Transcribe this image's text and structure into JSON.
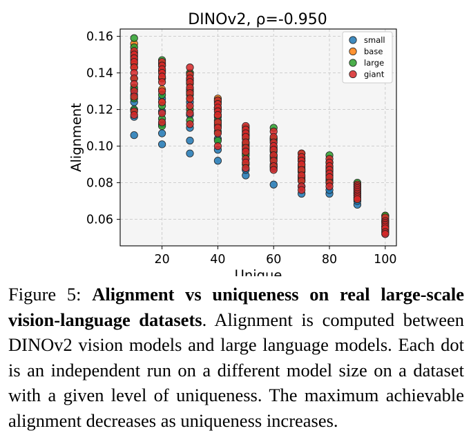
{
  "chart_data": {
    "type": "scatter",
    "title": "DINOv2, ρ=-0.950",
    "xlabel": "Unique",
    "ylabel": "Alignment",
    "xlim": [
      5,
      104
    ],
    "ylim": [
      0.0455,
      0.164
    ],
    "xticks": [
      20,
      40,
      60,
      80,
      100
    ],
    "yticks": [
      0.06,
      0.08,
      0.1,
      0.12,
      0.14,
      0.16
    ],
    "xtick_labels": [
      "20",
      "40",
      "60",
      "80",
      "100"
    ],
    "ytick_labels": [
      "0.06",
      "0.08",
      "0.10",
      "0.12",
      "0.14",
      "0.16"
    ],
    "grid": true,
    "legend_position": "top-right",
    "series": [
      {
        "name": "small",
        "color": "#1f77b4",
        "points": [
          [
            10,
            0.106
          ],
          [
            10,
            0.116
          ],
          [
            10,
            0.12
          ],
          [
            10,
            0.124
          ],
          [
            10,
            0.128
          ],
          [
            10,
            0.131
          ],
          [
            20,
            0.101
          ],
          [
            20,
            0.107
          ],
          [
            20,
            0.112
          ],
          [
            20,
            0.119
          ],
          [
            20,
            0.126
          ],
          [
            20,
            0.137
          ],
          [
            30,
            0.096
          ],
          [
            30,
            0.103
          ],
          [
            30,
            0.11
          ],
          [
            30,
            0.117
          ],
          [
            30,
            0.124
          ],
          [
            30,
            0.131
          ],
          [
            40,
            0.092
          ],
          [
            40,
            0.098
          ],
          [
            40,
            0.104
          ],
          [
            40,
            0.111
          ],
          [
            40,
            0.116
          ],
          [
            40,
            0.121
          ],
          [
            50,
            0.084
          ],
          [
            50,
            0.087
          ],
          [
            50,
            0.093
          ],
          [
            50,
            0.098
          ],
          [
            50,
            0.102
          ],
          [
            50,
            0.106
          ],
          [
            60,
            0.079
          ],
          [
            60,
            0.088
          ],
          [
            60,
            0.094
          ],
          [
            60,
            0.098
          ],
          [
            60,
            0.103
          ],
          [
            70,
            0.074
          ],
          [
            70,
            0.078
          ],
          [
            70,
            0.083
          ],
          [
            70,
            0.086
          ],
          [
            70,
            0.088
          ],
          [
            70,
            0.09
          ],
          [
            80,
            0.074
          ],
          [
            80,
            0.076
          ],
          [
            80,
            0.082
          ],
          [
            80,
            0.086
          ],
          [
            80,
            0.089
          ],
          [
            90,
            0.068
          ],
          [
            90,
            0.07
          ],
          [
            90,
            0.073
          ],
          [
            90,
            0.076
          ],
          [
            100,
            0.052
          ],
          [
            100,
            0.054
          ],
          [
            100,
            0.056
          ],
          [
            100,
            0.059
          ]
        ]
      },
      {
        "name": "base",
        "color": "#ff7f0e",
        "points": [
          [
            10,
            0.143
          ],
          [
            10,
            0.145
          ],
          [
            10,
            0.147
          ],
          [
            10,
            0.149
          ],
          [
            10,
            0.151
          ],
          [
            10,
            0.156
          ],
          [
            20,
            0.124
          ],
          [
            20,
            0.131
          ],
          [
            20,
            0.137
          ],
          [
            20,
            0.141
          ],
          [
            20,
            0.145
          ],
          [
            30,
            0.126
          ],
          [
            30,
            0.13
          ],
          [
            30,
            0.134
          ],
          [
            30,
            0.137
          ],
          [
            30,
            0.14
          ],
          [
            40,
            0.112
          ],
          [
            40,
            0.117
          ],
          [
            40,
            0.121
          ],
          [
            40,
            0.124
          ],
          [
            40,
            0.126
          ],
          [
            50,
            0.096
          ],
          [
            50,
            0.1
          ],
          [
            50,
            0.104
          ],
          [
            50,
            0.108
          ],
          [
            60,
            0.09
          ],
          [
            60,
            0.095
          ],
          [
            60,
            0.099
          ],
          [
            60,
            0.104
          ],
          [
            70,
            0.082
          ],
          [
            70,
            0.086
          ],
          [
            70,
            0.089
          ],
          [
            70,
            0.092
          ],
          [
            80,
            0.08
          ],
          [
            80,
            0.084
          ],
          [
            80,
            0.088
          ],
          [
            80,
            0.091
          ],
          [
            90,
            0.072
          ],
          [
            90,
            0.075
          ],
          [
            90,
            0.077
          ],
          [
            90,
            0.079
          ],
          [
            100,
            0.055
          ],
          [
            100,
            0.058
          ],
          [
            100,
            0.06
          ],
          [
            100,
            0.062
          ]
        ]
      },
      {
        "name": "large",
        "color": "#2ca02c",
        "points": [
          [
            10,
            0.159
          ],
          [
            10,
            0.154
          ],
          [
            10,
            0.137
          ],
          [
            10,
            0.132
          ],
          [
            10,
            0.126
          ],
          [
            10,
            0.12
          ],
          [
            20,
            0.147
          ],
          [
            20,
            0.144
          ],
          [
            20,
            0.128
          ],
          [
            20,
            0.122
          ],
          [
            20,
            0.115
          ],
          [
            20,
            0.111
          ],
          [
            30,
            0.14
          ],
          [
            30,
            0.136
          ],
          [
            30,
            0.128
          ],
          [
            30,
            0.12
          ],
          [
            30,
            0.114
          ],
          [
            40,
            0.125
          ],
          [
            40,
            0.12
          ],
          [
            40,
            0.114
          ],
          [
            40,
            0.108
          ],
          [
            40,
            0.103
          ],
          [
            50,
            0.11
          ],
          [
            50,
            0.106
          ],
          [
            50,
            0.101
          ],
          [
            50,
            0.095
          ],
          [
            50,
            0.09
          ],
          [
            60,
            0.11
          ],
          [
            60,
            0.104
          ],
          [
            60,
            0.097
          ],
          [
            60,
            0.093
          ],
          [
            60,
            0.089
          ],
          [
            70,
            0.096
          ],
          [
            70,
            0.093
          ],
          [
            70,
            0.087
          ],
          [
            70,
            0.081
          ],
          [
            80,
            0.095
          ],
          [
            80,
            0.091
          ],
          [
            80,
            0.087
          ],
          [
            80,
            0.081
          ],
          [
            90,
            0.08
          ],
          [
            90,
            0.078
          ],
          [
            90,
            0.074
          ],
          [
            90,
            0.071
          ],
          [
            100,
            0.062
          ],
          [
            100,
            0.059
          ],
          [
            100,
            0.056
          ],
          [
            100,
            0.053
          ]
        ]
      },
      {
        "name": "giant",
        "color": "#d62728",
        "points": [
          [
            10,
            0.152
          ],
          [
            10,
            0.15
          ],
          [
            10,
            0.148
          ],
          [
            10,
            0.146
          ],
          [
            10,
            0.143
          ],
          [
            10,
            0.14
          ],
          [
            10,
            0.137
          ],
          [
            10,
            0.134
          ],
          [
            10,
            0.13
          ],
          [
            10,
            0.127
          ],
          [
            10,
            0.119
          ],
          [
            10,
            0.117
          ],
          [
            20,
            0.146
          ],
          [
            20,
            0.144
          ],
          [
            20,
            0.142
          ],
          [
            20,
            0.14
          ],
          [
            20,
            0.138
          ],
          [
            20,
            0.135
          ],
          [
            20,
            0.13
          ],
          [
            20,
            0.124
          ],
          [
            20,
            0.118
          ],
          [
            20,
            0.113
          ],
          [
            30,
            0.143
          ],
          [
            30,
            0.139
          ],
          [
            30,
            0.137
          ],
          [
            30,
            0.135
          ],
          [
            30,
            0.132
          ],
          [
            30,
            0.129
          ],
          [
            30,
            0.126
          ],
          [
            30,
            0.122
          ],
          [
            30,
            0.118
          ],
          [
            30,
            0.112
          ],
          [
            40,
            0.125
          ],
          [
            40,
            0.123
          ],
          [
            40,
            0.121
          ],
          [
            40,
            0.119
          ],
          [
            40,
            0.117
          ],
          [
            40,
            0.113
          ],
          [
            40,
            0.11
          ],
          [
            40,
            0.107
          ],
          [
            40,
            0.1
          ],
          [
            50,
            0.111
          ],
          [
            50,
            0.109
          ],
          [
            50,
            0.107
          ],
          [
            50,
            0.105
          ],
          [
            50,
            0.102
          ],
          [
            50,
            0.099
          ],
          [
            50,
            0.097
          ],
          [
            50,
            0.093
          ],
          [
            50,
            0.091
          ],
          [
            50,
            0.088
          ],
          [
            60,
            0.108
          ],
          [
            60,
            0.105
          ],
          [
            60,
            0.102
          ],
          [
            60,
            0.1
          ],
          [
            60,
            0.098
          ],
          [
            60,
            0.095
          ],
          [
            60,
            0.092
          ],
          [
            60,
            0.089
          ],
          [
            60,
            0.087
          ],
          [
            70,
            0.096
          ],
          [
            70,
            0.094
          ],
          [
            70,
            0.092
          ],
          [
            70,
            0.09
          ],
          [
            70,
            0.087
          ],
          [
            70,
            0.084
          ],
          [
            70,
            0.081
          ],
          [
            70,
            0.078
          ],
          [
            70,
            0.076
          ],
          [
            80,
            0.093
          ],
          [
            80,
            0.091
          ],
          [
            80,
            0.089
          ],
          [
            80,
            0.087
          ],
          [
            80,
            0.085
          ],
          [
            80,
            0.083
          ],
          [
            80,
            0.08
          ],
          [
            80,
            0.078
          ],
          [
            90,
            0.079
          ],
          [
            90,
            0.078
          ],
          [
            90,
            0.077
          ],
          [
            90,
            0.076
          ],
          [
            90,
            0.075
          ],
          [
            90,
            0.074
          ],
          [
            90,
            0.073
          ],
          [
            90,
            0.072
          ],
          [
            90,
            0.071
          ],
          [
            100,
            0.061
          ],
          [
            100,
            0.059
          ],
          [
            100,
            0.058
          ],
          [
            100,
            0.057
          ],
          [
            100,
            0.056
          ],
          [
            100,
            0.055
          ],
          [
            100,
            0.053
          ],
          [
            100,
            0.052
          ]
        ]
      }
    ]
  },
  "caption": {
    "label": "Figure 5:",
    "bold": "Alignment vs uniqueness on real large-scale vision-language datasets",
    "text": ". Alignment is computed between DINOv2 vision models and large language models. Each dot is an independent run on a different model size on a dataset with a given level of uniqueness. The maximum achievable alignment decreases as uniqueness increases."
  }
}
